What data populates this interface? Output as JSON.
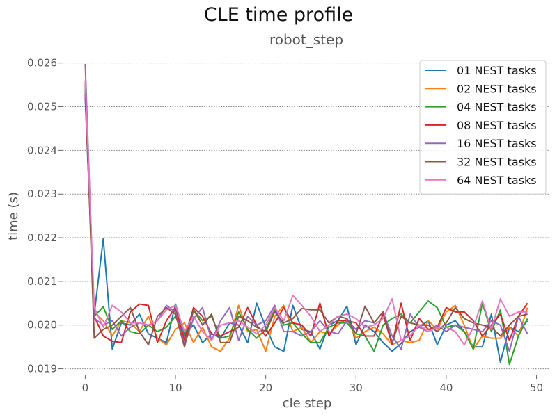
{
  "title": "CLE time profile",
  "subtitle": "robot_step",
  "chart_data": {
    "type": "line",
    "xlabel": "cle step",
    "ylabel": "time (s)",
    "xlim": [
      -2.5,
      51.5
    ],
    "ylim": [
      0.01885,
      0.02617
    ],
    "xticks": [
      0,
      10,
      20,
      30,
      40,
      50
    ],
    "xtick_labels": [
      "0",
      "10",
      "20",
      "30",
      "40",
      "50"
    ],
    "yticks": [
      0.019,
      0.02,
      0.021,
      0.022,
      0.023,
      0.024,
      0.025,
      0.026
    ],
    "ytick_labels": [
      "0.019",
      "0.020",
      "0.021",
      "0.022",
      "0.023",
      "0.024",
      "0.025",
      "0.026"
    ],
    "grid": "horizontal dotted",
    "legend_position": "top-right",
    "x": [
      0,
      1,
      2,
      3,
      4,
      5,
      6,
      7,
      8,
      9,
      10,
      11,
      12,
      13,
      14,
      15,
      16,
      17,
      18,
      19,
      20,
      21,
      22,
      23,
      24,
      25,
      26,
      27,
      28,
      29,
      30,
      31,
      32,
      33,
      34,
      35,
      36,
      37,
      38,
      39,
      40,
      41,
      42,
      43,
      44,
      45,
      46,
      47,
      48,
      49
    ],
    "series": [
      {
        "name": "01 NEST tasks",
        "color": "#1f77b4",
        "values": [
          0.0252,
          0.02025,
          0.02198,
          0.01945,
          0.02005,
          0.02,
          0.02025,
          0.0198,
          0.0197,
          0.0196,
          0.02048,
          0.0198,
          0.02,
          0.0196,
          0.0198,
          0.0197,
          0.02005,
          0.02,
          0.0196,
          0.0205,
          0.01995,
          0.0195,
          0.0194,
          0.02045,
          0.0199,
          0.01985,
          0.01945,
          0.02,
          0.0201,
          0.02043,
          0.01955,
          0.02,
          0.01985,
          0.0196,
          0.0194,
          0.01958,
          0.01985,
          0.01995,
          0.0201,
          0.01955,
          0.02,
          0.0201,
          0.01985,
          0.0195,
          0.0195,
          0.02025,
          0.01915,
          0.01995,
          0.01985,
          0.0201
        ]
      },
      {
        "name": "02 NEST tasks",
        "color": "#ff7f0e",
        "values": [
          0.0255,
          0.0203,
          0.0201,
          0.01975,
          0.0201,
          0.02005,
          0.01985,
          0.0202,
          0.0197,
          0.01955,
          0.0199,
          0.02005,
          0.0196,
          0.01995,
          0.0195,
          0.0194,
          0.0197,
          0.02045,
          0.01985,
          0.0199,
          0.0194,
          0.0202,
          0.02045,
          0.01985,
          0.01995,
          0.0196,
          0.01985,
          0.0198,
          0.02,
          0.02015,
          0.0197,
          0.01985,
          0.01995,
          0.0198,
          0.01955,
          0.01965,
          0.0196,
          0.01965,
          0.0201,
          0.0199,
          0.0203,
          0.02045,
          0.02,
          0.01945,
          0.01975,
          0.0197,
          0.0197,
          0.01995,
          0.01975,
          0.0204
        ]
      },
      {
        "name": "04 NEST tasks",
        "color": "#2ca02c",
        "values": [
          0.0254,
          0.0202,
          0.02042,
          0.0199,
          0.0201,
          0.01985,
          0.0198,
          0.02,
          0.01985,
          0.01995,
          0.0202,
          0.01975,
          0.02035,
          0.0201,
          0.0202,
          0.0197,
          0.01975,
          0.0203,
          0.0199,
          0.0197,
          0.0199,
          0.02035,
          0.02,
          0.02005,
          0.0198,
          0.0196,
          0.0196,
          0.01995,
          0.02005,
          0.02005,
          0.0198,
          0.01975,
          0.0194,
          0.02,
          0.02015,
          0.02025,
          0.02005,
          0.0203,
          0.02055,
          0.0204,
          0.01995,
          0.02,
          0.01985,
          0.01945,
          0.0205,
          0.01985,
          0.02035,
          0.0191,
          0.01975,
          0.02015
        ]
      },
      {
        "name": "08 NEST tasks",
        "color": "#d62728",
        "values": [
          0.0253,
          0.0202,
          0.01975,
          0.01963,
          0.0196,
          0.0203,
          0.02048,
          0.02045,
          0.0196,
          0.0201,
          0.0204,
          0.01965,
          0.0204,
          0.0202,
          0.0198,
          0.01975,
          0.01985,
          0.01995,
          0.0204,
          0.02,
          0.01975,
          0.02005,
          0.0204,
          0.02005,
          0.02,
          0.01975,
          0.0205,
          0.01975,
          0.0201,
          0.0201,
          0.02005,
          0.01975,
          0.01975,
          0.02025,
          0.01955,
          0.0205,
          0.01965,
          0.02015,
          0.0199,
          0.01995,
          0.0204,
          0.0203,
          0.0203,
          0.0201,
          0.01975,
          0.02,
          0.02025,
          0.01965,
          0.0202,
          0.0205
        ]
      },
      {
        "name": "16 NEST tasks",
        "color": "#9467bd",
        "values": [
          0.02598,
          0.02015,
          0.02,
          0.0201,
          0.01975,
          0.01995,
          0.02005,
          0.02,
          0.0201,
          0.02045,
          0.0203,
          0.01955,
          0.02015,
          0.0204,
          0.01965,
          0.0201,
          0.0204,
          0.01965,
          0.0202,
          0.02,
          0.0201,
          0.02045,
          0.01985,
          0.01985,
          0.01975,
          0.01985,
          0.0201,
          0.01985,
          0.0198,
          0.0201,
          0.0199,
          0.0201,
          0.02005,
          0.0203,
          0.01975,
          0.01945,
          0.02025,
          0.01995,
          0.01985,
          0.02,
          0.01985,
          0.02,
          0.01995,
          0.0199,
          0.01985,
          0.0201,
          0.02,
          0.0194,
          0.0202,
          0.0198
        ]
      },
      {
        "name": "32 NEST tasks",
        "color": "#8c564b",
        "values": [
          0.0256,
          0.0197,
          0.0199,
          0.02,
          0.0202,
          0.0204,
          0.01985,
          0.01955,
          0.0202,
          0.0204,
          0.02025,
          0.0195,
          0.02035,
          0.02,
          0.02025,
          0.0196,
          0.0196,
          0.0202,
          0.0201,
          0.01995,
          0.01985,
          0.0203,
          0.02005,
          0.02015,
          0.02038,
          0.02035,
          0.02035,
          0.02005,
          0.0202,
          0.02015,
          0.0198,
          0.02043,
          0.02005,
          0.0203,
          0.0196,
          0.0202,
          0.02005,
          0.02,
          0.02,
          0.01985,
          0.02005,
          0.0204,
          0.02015,
          0.02005,
          0.02,
          0.01995,
          0.01975,
          0.02,
          0.0202,
          0.02025
        ]
      },
      {
        "name": "64 NEST tasks",
        "color": "#e377c2",
        "values": [
          0.0256,
          0.0204,
          0.01995,
          0.02045,
          0.0203,
          0.02005,
          0.02005,
          0.02,
          0.0201,
          0.02035,
          0.02045,
          0.01985,
          0.0202,
          0.01985,
          0.01965,
          0.02,
          0.02005,
          0.0201,
          0.01995,
          0.0198,
          0.02,
          0.0204,
          0.0201,
          0.02068,
          0.02045,
          0.0202,
          0.01985,
          0.02,
          0.0202,
          0.02025,
          0.02015,
          0.01995,
          0.02,
          0.02015,
          0.0206,
          0.01965,
          0.01975,
          0.02,
          0.01985,
          0.01995,
          0.01995,
          0.01985,
          0.01955,
          0.01995,
          0.02055,
          0.0199,
          0.0206,
          0.0202,
          0.0203,
          0.0203
        ]
      }
    ]
  }
}
